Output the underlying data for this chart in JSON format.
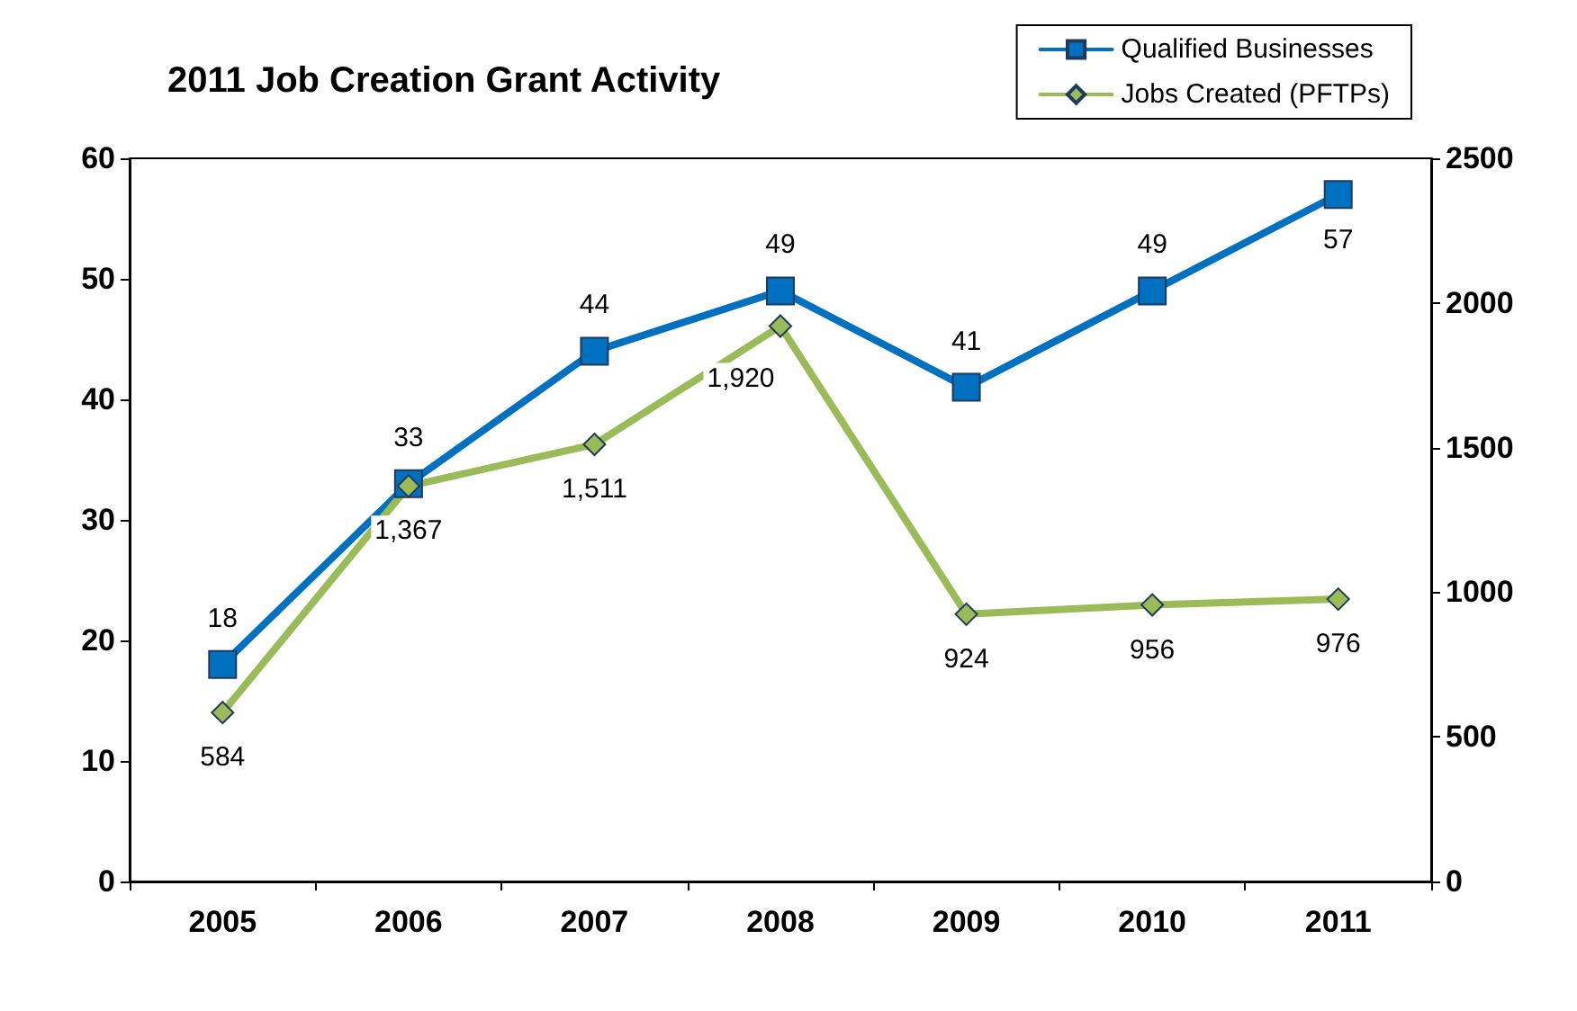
{
  "chart_data": {
    "type": "line",
    "title": "2011 Job Creation Grant Activity",
    "categories": [
      "2005",
      "2006",
      "2007",
      "2008",
      "2009",
      "2010",
      "2011"
    ],
    "series": [
      {
        "name": "Qualified Businesses",
        "color": "#0070c0",
        "marker": "square",
        "values": [
          18,
          33,
          44,
          49,
          41,
          49,
          57
        ]
      },
      {
        "name": "Jobs Created (PFTPs)",
        "color": "#9bbb59",
        "marker": "diamond",
        "axis": "y2",
        "values": [
          584,
          1367,
          1511,
          1920,
          924,
          956,
          976
        ],
        "value_labels": [
          "584",
          "1,367",
          "1,511",
          "1,920",
          "924",
          "956",
          "976"
        ]
      }
    ],
    "ylim": [
      0,
      60
    ],
    "yticks": [
      0,
      10,
      20,
      30,
      40,
      50,
      60
    ],
    "y2lim": [
      0,
      2500
    ],
    "y2ticks": [
      0,
      500,
      1000,
      1500,
      2000,
      2500
    ],
    "data_labels": true,
    "grid": false,
    "legend": "top right"
  }
}
